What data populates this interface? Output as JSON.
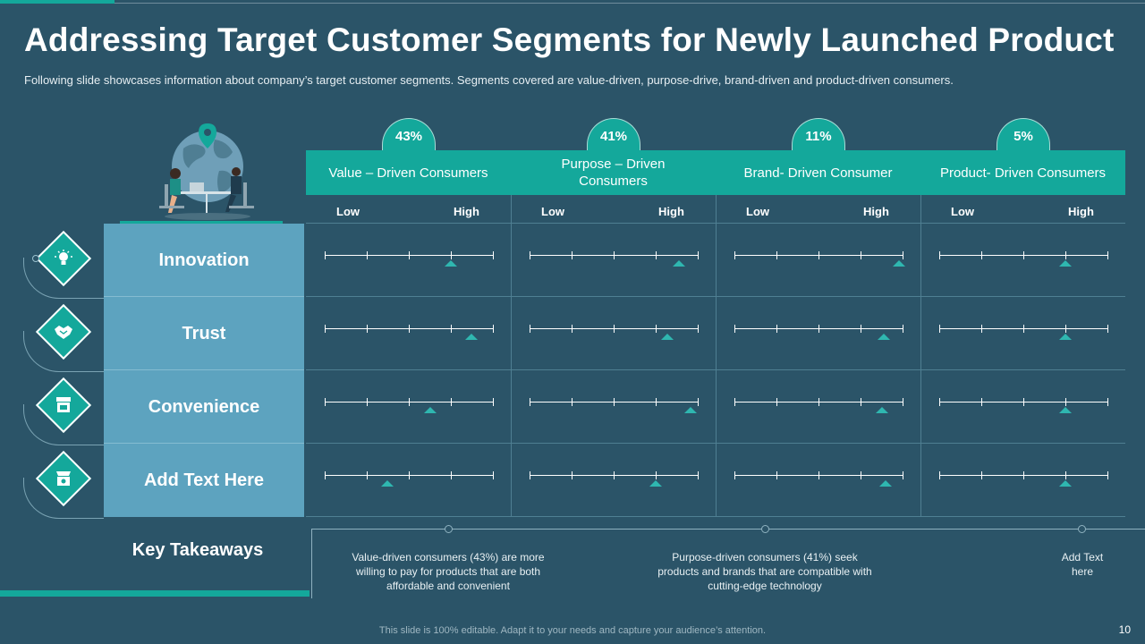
{
  "title": "Addressing Target Customer Segments for Newly Launched Product",
  "subtitle": "Following slide showcases information about company’s target customer segments. Segments covered are value-driven, purpose-drive, brand-driven and product-driven consumers.",
  "scale": {
    "low": "Low",
    "high": "High"
  },
  "segments": [
    {
      "label": "Value – Driven Consumers",
      "percent": "43%"
    },
    {
      "label": "Purpose – Driven Consumers",
      "percent": "41%"
    },
    {
      "label": "Brand- Driven Consumer",
      "percent": "11%"
    },
    {
      "label": "Product- Driven Consumers",
      "percent": "5%"
    }
  ],
  "rows": [
    {
      "label": "Innovation",
      "icon": "lightbulb-icon",
      "levels": [
        0.75,
        0.89,
        0.98,
        0.75
      ]
    },
    {
      "label": "Trust",
      "icon": "handshake-icon",
      "levels": [
        0.87,
        0.82,
        0.89,
        0.75
      ]
    },
    {
      "label": "Convenience",
      "icon": "store-icon",
      "levels": [
        0.63,
        0.96,
        0.88,
        0.75
      ]
    },
    {
      "label": "Add Text Here",
      "icon": "shop-icon",
      "levels": [
        0.37,
        0.75,
        0.9,
        0.75
      ]
    }
  ],
  "takeaways": {
    "heading": "Key Takeaways",
    "items": [
      "Value-driven consumers (43%) are more willing to pay for products that are both affordable and convenient",
      "Purpose-driven consumers (41%) seek products and brands that are compatible with cutting-edge technology",
      "Add Text here"
    ]
  },
  "footer": "This slide is 100% editable. Adapt it to your needs and capture your audience’s attention.",
  "page_number": "10",
  "colors": {
    "accent": "#14a89b",
    "background": "#2b5468",
    "label_column": "#5da3bf"
  }
}
